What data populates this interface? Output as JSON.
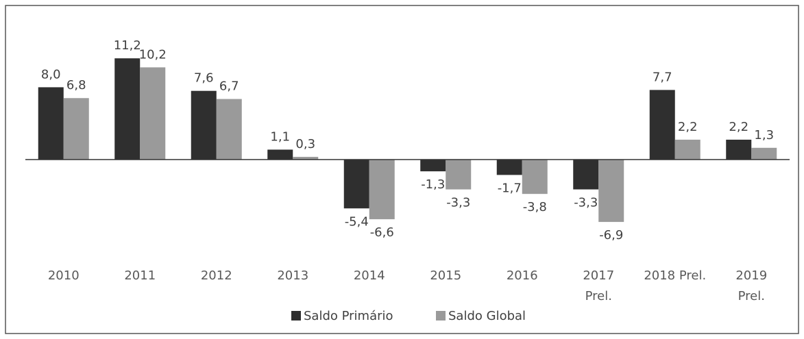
{
  "chart_data": {
    "type": "bar",
    "categories": [
      "2010",
      "2011",
      "2012",
      "2013",
      "2014",
      "2015",
      "2016",
      "2017\nPrel.",
      "2018 Prel.",
      "2019\nPrel."
    ],
    "series": [
      {
        "name": "Saldo Primário",
        "color": "#2f2f2f",
        "values": [
          8.0,
          11.2,
          7.6,
          1.1,
          -5.4,
          -1.3,
          -1.7,
          -3.3,
          7.7,
          2.2
        ],
        "value_labels": [
          "8,0",
          "11,2",
          "7,6",
          "1,1",
          "-5,4",
          "-1,3",
          "-1,7",
          "-3,3",
          "7,7",
          "2,2"
        ]
      },
      {
        "name": "Saldo Global",
        "color": "#9a9a9a",
        "values": [
          6.8,
          10.2,
          6.7,
          0.3,
          -6.6,
          -3.3,
          -3.8,
          -6.9,
          2.2,
          1.3
        ],
        "value_labels": [
          "6,8",
          "10,2",
          "6,7",
          "0,3",
          "-6,6",
          "-3,3",
          "-3,8",
          "-6,9",
          "2,2",
          "1,3"
        ]
      }
    ],
    "ylim": [
      -8,
      13
    ],
    "legend": "bottom"
  }
}
